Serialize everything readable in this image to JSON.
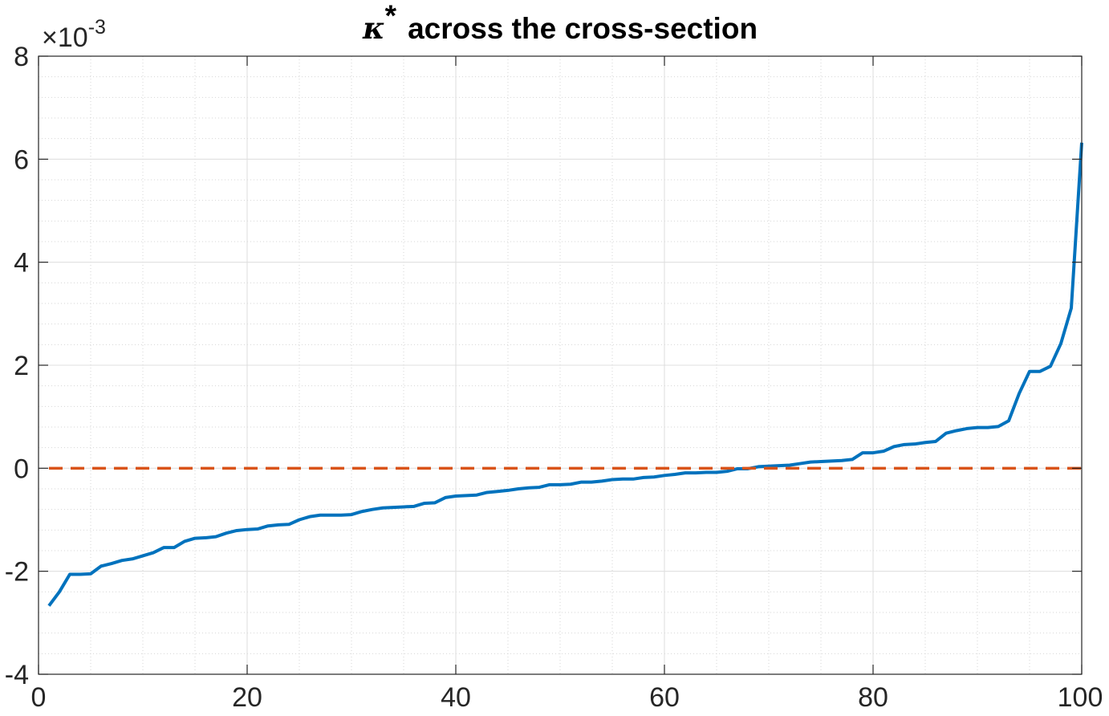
{
  "chart_data": {
    "type": "line",
    "title": {
      "symbol": "κ",
      "superscript": "*",
      "text": "across the cross-section"
    },
    "xlabel": "",
    "ylabel": "",
    "xlim": [
      0,
      100
    ],
    "ylim": [
      -4,
      8
    ],
    "y_multiplier": {
      "base": "×10",
      "exponent": "-3"
    },
    "x_ticks": [
      0,
      20,
      40,
      60,
      80,
      100
    ],
    "x_tick_labels": [
      "0",
      "20",
      "40",
      "60",
      "80",
      "100"
    ],
    "y_ticks": [
      -4,
      -2,
      0,
      2,
      4,
      6,
      8
    ],
    "y_tick_labels": [
      "-4",
      "-2",
      "0",
      "2",
      "4",
      "6",
      "8"
    ],
    "grid": "major and minor",
    "legend": "none",
    "series": [
      {
        "name": "kappa-star",
        "style": "solid",
        "color": "#0072BD",
        "x": [
          1,
          2,
          3,
          4,
          5,
          6,
          7,
          8,
          9,
          10,
          11,
          12,
          13,
          14,
          15,
          16,
          17,
          18,
          19,
          20,
          21,
          22,
          23,
          24,
          25,
          26,
          27,
          28,
          29,
          30,
          31,
          32,
          33,
          34,
          35,
          36,
          37,
          38,
          39,
          40,
          41,
          42,
          43,
          44,
          45,
          46,
          47,
          48,
          49,
          50,
          51,
          52,
          53,
          54,
          55,
          56,
          57,
          58,
          59,
          60,
          61,
          62,
          63,
          64,
          65,
          66,
          67,
          68,
          69,
          70,
          71,
          72,
          73,
          74,
          75,
          76,
          77,
          78,
          79,
          80,
          81,
          82,
          83,
          84,
          85,
          86,
          87,
          88,
          89,
          90,
          91,
          92,
          93,
          94,
          95,
          96,
          97,
          98,
          99,
          100
        ],
        "values": [
          -2.67,
          -2.4,
          -2.06,
          -2.06,
          -2.05,
          -1.9,
          -1.85,
          -1.79,
          -1.76,
          -1.7,
          -1.64,
          -1.54,
          -1.54,
          -1.42,
          -1.36,
          -1.35,
          -1.33,
          -1.26,
          -1.21,
          -1.19,
          -1.18,
          -1.12,
          -1.1,
          -1.09,
          -1.0,
          -0.94,
          -0.91,
          -0.91,
          -0.91,
          -0.9,
          -0.84,
          -0.8,
          -0.77,
          -0.76,
          -0.75,
          -0.74,
          -0.68,
          -0.67,
          -0.57,
          -0.54,
          -0.53,
          -0.52,
          -0.47,
          -0.45,
          -0.43,
          -0.4,
          -0.38,
          -0.37,
          -0.32,
          -0.32,
          -0.31,
          -0.27,
          -0.27,
          -0.25,
          -0.22,
          -0.21,
          -0.21,
          -0.18,
          -0.17,
          -0.14,
          -0.12,
          -0.09,
          -0.09,
          -0.08,
          -0.08,
          -0.06,
          -0.01,
          -0.01,
          0.03,
          0.04,
          0.05,
          0.06,
          0.09,
          0.12,
          0.13,
          0.14,
          0.15,
          0.17,
          0.3,
          0.3,
          0.33,
          0.42,
          0.46,
          0.47,
          0.5,
          0.52,
          0.68,
          0.73,
          0.77,
          0.79,
          0.79,
          0.81,
          0.92,
          1.45,
          1.88,
          1.88,
          1.98,
          2.42,
          3.11,
          6.32
        ]
      },
      {
        "name": "zero-line",
        "style": "dashed",
        "color": "#D95319",
        "x": [
          1,
          100
        ],
        "values": [
          0,
          0
        ]
      }
    ]
  }
}
